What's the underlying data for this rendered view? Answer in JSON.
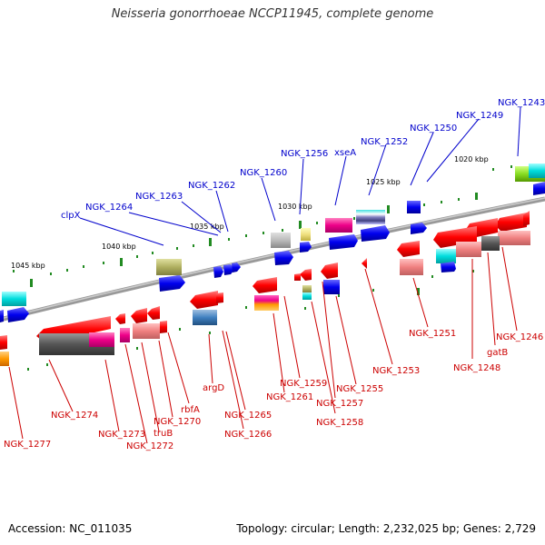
{
  "title": "Neisseria gonorrhoeae NCCP11945, complete genome",
  "accession_label": "Accession: NC_011035",
  "summary_label": "Topology: circular; Length: 2,232,025 bp; Genes: 2,729",
  "colors": {
    "upper_label": "#0000cc",
    "lower_label": "#cc0000",
    "backbone": "#888888",
    "tick": "#228b22"
  },
  "kbp_ticks": [
    "1020 kbp",
    "1025 kbp",
    "1030 kbp",
    "1035 kbp",
    "1040 kbp",
    "1045 kbp"
  ],
  "upper_genes": [
    "NGK_1243",
    "NGK_1249",
    "NGK_1250",
    "NGK_1252",
    "xseA",
    "NGK_1256",
    "NGK_1260",
    "NGK_1262",
    "NGK_1263",
    "NGK_1264",
    "clpX"
  ],
  "lower_genes": [
    "NGK_1246",
    "gatB",
    "NGK_1248",
    "NGK_1251",
    "NGK_1253",
    "NGK_1255",
    "NGK_1257",
    "NGK_1258",
    "NGK_1259",
    "NGK_1261",
    "NGK_1265",
    "NGK_1266",
    "argD",
    "rbfA",
    "NGK_1270",
    "truB",
    "NGK_1272",
    "NGK_1273",
    "NGK_1274",
    "NGK_1277"
  ]
}
